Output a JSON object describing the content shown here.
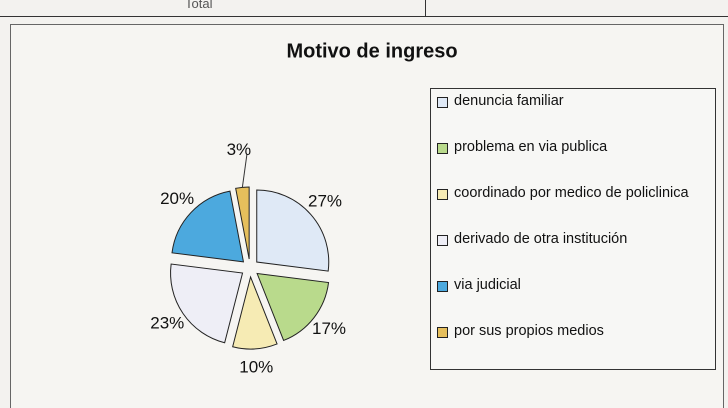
{
  "page_fragment": {
    "top_cell": "Total"
  },
  "chart_data": {
    "type": "pie",
    "title": "Motivo de ingreso",
    "categories": [
      "denuncia familiar",
      "problema en via publica",
      "coordinado por medico de policlinica",
      "derivado de otra institución",
      "via judicial",
      "por sus propios medios"
    ],
    "values": [
      27,
      17,
      10,
      23,
      20,
      3
    ],
    "value_labels": [
      "27%",
      "17%",
      "10%",
      "23%",
      "20%",
      "3%"
    ],
    "colors": [
      "#dfe9f6",
      "#b9da8c",
      "#f6ebb4",
      "#eeeef6",
      "#4ca9de",
      "#e6bf5c"
    ],
    "legend": "right"
  }
}
